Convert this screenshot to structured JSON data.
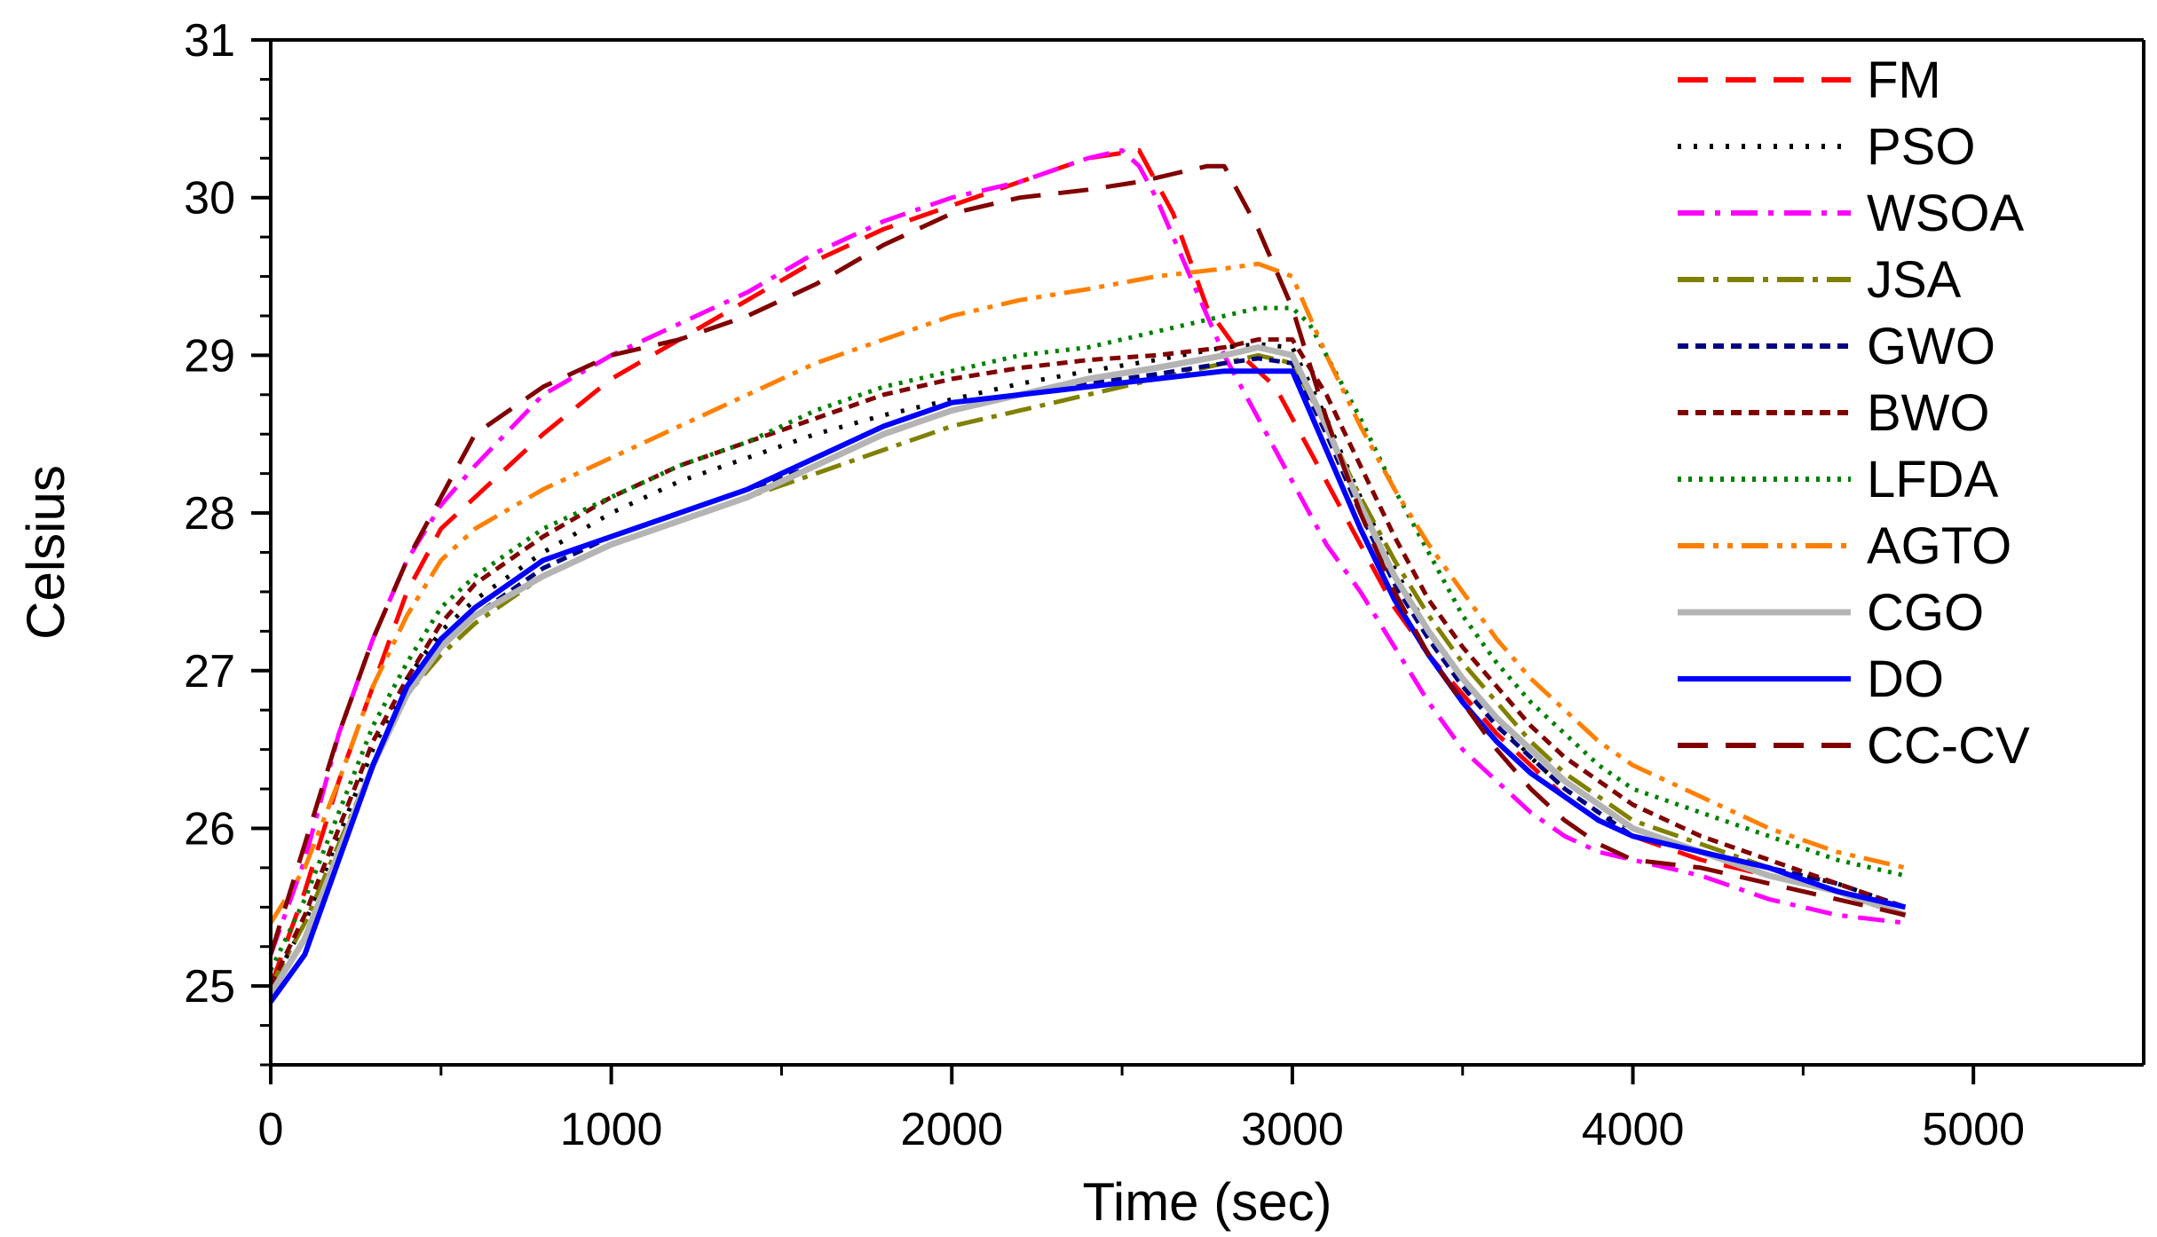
{
  "chart_data": {
    "type": "line",
    "title": "",
    "xlabel": "Time (sec)",
    "ylabel": "Celsius",
    "xlim": [
      0,
      5500
    ],
    "ylim": [
      24.5,
      31
    ],
    "xticks": [
      0,
      1000,
      2000,
      3000,
      4000,
      5000
    ],
    "yticks": [
      25,
      26,
      27,
      28,
      29,
      30,
      31
    ],
    "legend_position": "top-right",
    "series": [
      {
        "name": "FM",
        "color": "#ff0000",
        "dash": "34,20",
        "x": [
          0,
          100,
          200,
          300,
          400,
          500,
          600,
          800,
          1000,
          1200,
          1400,
          1600,
          1800,
          2000,
          2200,
          2400,
          2550,
          2650,
          2750,
          2850,
          2950,
          3000,
          3100,
          3200,
          3300,
          3400,
          3500,
          3600,
          3700,
          3800,
          3900,
          4000,
          4200,
          4400,
          4600,
          4700,
          4800
        ],
        "y": [
          25.0,
          25.6,
          26.3,
          26.9,
          27.5,
          27.9,
          28.1,
          28.5,
          28.85,
          29.1,
          29.35,
          29.6,
          29.8,
          29.95,
          30.1,
          30.25,
          30.3,
          29.9,
          29.3,
          29.0,
          28.8,
          28.6,
          28.2,
          27.8,
          27.4,
          27.1,
          26.85,
          26.6,
          26.4,
          26.2,
          26.05,
          25.95,
          25.8,
          25.7,
          25.6,
          25.55,
          25.5
        ]
      },
      {
        "name": "PSO",
        "color": "#000000",
        "dash": "4,14",
        "x": [
          0,
          100,
          200,
          300,
          400,
          500,
          600,
          800,
          1000,
          1200,
          1400,
          1600,
          1800,
          2000,
          2200,
          2400,
          2600,
          2800,
          2900,
          3000,
          3100,
          3200,
          3300,
          3400,
          3500,
          3600,
          3700,
          3800,
          3900,
          4000,
          4200,
          4400,
          4600,
          4800
        ],
        "y": [
          25.0,
          25.4,
          25.95,
          26.5,
          26.95,
          27.25,
          27.45,
          27.75,
          28.0,
          28.2,
          28.35,
          28.5,
          28.62,
          28.72,
          28.82,
          28.9,
          28.97,
          29.05,
          29.07,
          29.05,
          28.6,
          28.1,
          27.65,
          27.25,
          26.95,
          26.7,
          26.45,
          26.25,
          26.1,
          26.0,
          25.85,
          25.75,
          25.65,
          25.5
        ]
      },
      {
        "name": "WSOA",
        "color": "#ff00ff",
        "dash": "30,12,6,12",
        "x": [
          0,
          100,
          200,
          300,
          400,
          500,
          600,
          800,
          1000,
          1200,
          1400,
          1600,
          1800,
          2000,
          2200,
          2400,
          2500,
          2550,
          2600,
          2700,
          2800,
          2900,
          3000,
          3100,
          3200,
          3300,
          3400,
          3500,
          3600,
          3700,
          3800,
          3900,
          4000,
          4200,
          4400,
          4600,
          4800
        ],
        "y": [
          25.2,
          25.8,
          26.6,
          27.2,
          27.7,
          28.05,
          28.3,
          28.75,
          29.0,
          29.2,
          29.4,
          29.65,
          29.85,
          30.0,
          30.1,
          30.25,
          30.3,
          30.2,
          30.0,
          29.5,
          29.0,
          28.6,
          28.2,
          27.8,
          27.5,
          27.15,
          26.8,
          26.5,
          26.3,
          26.1,
          25.95,
          25.85,
          25.8,
          25.7,
          25.55,
          25.45,
          25.4
        ]
      },
      {
        "name": "JSA",
        "color": "#808000",
        "dash": "30,10,6,10",
        "x": [
          0,
          100,
          200,
          300,
          400,
          500,
          600,
          800,
          1000,
          1200,
          1400,
          1600,
          1800,
          2000,
          2200,
          2400,
          2600,
          2800,
          2900,
          3000,
          3100,
          3200,
          3300,
          3400,
          3500,
          3600,
          3700,
          3800,
          3900,
          4000,
          4200,
          4400,
          4600,
          4800
        ],
        "y": [
          25.0,
          25.4,
          25.9,
          26.4,
          26.85,
          27.1,
          27.3,
          27.6,
          27.8,
          27.95,
          28.1,
          28.25,
          28.4,
          28.55,
          28.65,
          28.75,
          28.85,
          28.95,
          29.0,
          28.95,
          28.55,
          28.1,
          27.7,
          27.35,
          27.05,
          26.8,
          26.55,
          26.35,
          26.2,
          26.05,
          25.9,
          25.75,
          25.6,
          25.45
        ]
      },
      {
        "name": "GWO",
        "color": "#000080",
        "dash": "12,8",
        "x": [
          0,
          100,
          200,
          300,
          400,
          500,
          600,
          800,
          1000,
          1200,
          1400,
          1600,
          1800,
          2000,
          2200,
          2400,
          2600,
          2800,
          2900,
          3000,
          3100,
          3200,
          3300,
          3400,
          3500,
          3600,
          3700,
          3800,
          3900,
          4000,
          4200,
          4400,
          4600,
          4800
        ],
        "y": [
          24.95,
          25.3,
          25.85,
          26.4,
          26.85,
          27.15,
          27.35,
          27.65,
          27.85,
          28.0,
          28.15,
          28.3,
          28.5,
          28.65,
          28.75,
          28.82,
          28.88,
          28.95,
          28.98,
          28.95,
          28.5,
          28.0,
          27.55,
          27.2,
          26.9,
          26.65,
          26.45,
          26.25,
          26.1,
          25.95,
          25.85,
          25.75,
          25.65,
          25.5
        ]
      },
      {
        "name": "BWO",
        "color": "#800000",
        "dash": "12,8",
        "x": [
          0,
          100,
          200,
          300,
          400,
          500,
          600,
          800,
          1000,
          1200,
          1400,
          1600,
          1800,
          2000,
          2200,
          2400,
          2600,
          2800,
          2900,
          3000,
          3100,
          3200,
          3300,
          3400,
          3500,
          3600,
          3700,
          3800,
          3900,
          4000,
          4200,
          4400,
          4600,
          4800
        ],
        "y": [
          25.0,
          25.45,
          26.0,
          26.55,
          26.95,
          27.3,
          27.55,
          27.85,
          28.1,
          28.3,
          28.45,
          28.6,
          28.75,
          28.85,
          28.92,
          28.97,
          29.0,
          29.05,
          29.1,
          29.1,
          28.75,
          28.3,
          27.85,
          27.45,
          27.15,
          26.9,
          26.65,
          26.45,
          26.3,
          26.15,
          25.95,
          25.8,
          25.65,
          25.5
        ]
      },
      {
        "name": "LFDA",
        "color": "#008000",
        "dash": "4,8",
        "x": [
          0,
          100,
          200,
          300,
          400,
          500,
          600,
          800,
          1000,
          1200,
          1400,
          1600,
          1800,
          2000,
          2200,
          2400,
          2600,
          2800,
          2900,
          3000,
          3050,
          3100,
          3200,
          3300,
          3400,
          3500,
          3600,
          3700,
          3800,
          3900,
          4000,
          4200,
          4400,
          4600,
          4800
        ],
        "y": [
          25.1,
          25.55,
          26.1,
          26.65,
          27.05,
          27.4,
          27.6,
          27.9,
          28.1,
          28.3,
          28.45,
          28.65,
          28.8,
          28.9,
          29.0,
          29.05,
          29.15,
          29.25,
          29.3,
          29.3,
          29.2,
          29.0,
          28.6,
          28.15,
          27.75,
          27.35,
          27.05,
          26.8,
          26.6,
          26.4,
          26.25,
          26.1,
          25.95,
          25.8,
          25.7
        ]
      },
      {
        "name": "AGTO",
        "color": "#ff8000",
        "dash": "30,10,6,10,6,10",
        "x": [
          0,
          100,
          200,
          300,
          400,
          500,
          600,
          800,
          1000,
          1200,
          1400,
          1600,
          1800,
          2000,
          2200,
          2400,
          2600,
          2800,
          2900,
          3000,
          3100,
          3200,
          3300,
          3400,
          3500,
          3600,
          3700,
          3800,
          3900,
          4000,
          4200,
          4400,
          4600,
          4800
        ],
        "y": [
          25.4,
          25.75,
          26.3,
          26.9,
          27.35,
          27.7,
          27.9,
          28.15,
          28.35,
          28.55,
          28.75,
          28.95,
          29.1,
          29.25,
          29.35,
          29.42,
          29.5,
          29.55,
          29.58,
          29.5,
          29.0,
          28.55,
          28.15,
          27.8,
          27.5,
          27.2,
          26.95,
          26.75,
          26.55,
          26.4,
          26.2,
          26.0,
          25.85,
          25.75
        ]
      },
      {
        "name": "CGO",
        "color": "#b4b4b4",
        "dash": "",
        "x": [
          0,
          100,
          200,
          300,
          400,
          500,
          600,
          800,
          1000,
          1200,
          1400,
          1600,
          1800,
          2000,
          2200,
          2400,
          2600,
          2800,
          2900,
          3000,
          3100,
          3200,
          3300,
          3400,
          3500,
          3600,
          3700,
          3800,
          3900,
          4000,
          4200,
          4400,
          4600,
          4800
        ],
        "y": [
          24.95,
          25.3,
          25.85,
          26.4,
          26.85,
          27.15,
          27.35,
          27.6,
          27.8,
          27.95,
          28.1,
          28.3,
          28.5,
          28.65,
          28.75,
          28.85,
          28.92,
          29.0,
          29.05,
          29.0,
          28.55,
          28.05,
          27.6,
          27.25,
          26.95,
          26.7,
          26.5,
          26.3,
          26.15,
          26.0,
          25.85,
          25.7,
          25.6,
          25.45
        ]
      },
      {
        "name": "DO",
        "color": "#0000ff",
        "dash": "",
        "x": [
          0,
          100,
          200,
          300,
          400,
          500,
          600,
          800,
          1000,
          1200,
          1400,
          1600,
          1800,
          2000,
          2200,
          2400,
          2600,
          2800,
          2900,
          3000,
          3100,
          3200,
          3300,
          3400,
          3500,
          3600,
          3700,
          3800,
          3900,
          4000,
          4200,
          4400,
          4600,
          4800
        ],
        "y": [
          24.9,
          25.2,
          25.8,
          26.4,
          26.9,
          27.2,
          27.4,
          27.7,
          27.85,
          28.0,
          28.15,
          28.35,
          28.55,
          28.7,
          28.75,
          28.8,
          28.85,
          28.9,
          28.9,
          28.9,
          28.4,
          27.9,
          27.45,
          27.1,
          26.8,
          26.55,
          26.35,
          26.2,
          26.05,
          25.95,
          25.85,
          25.75,
          25.6,
          25.5
        ]
      },
      {
        "name": "CC-CV",
        "color": "#800000",
        "dash": "34,20",
        "x": [
          0,
          100,
          200,
          300,
          400,
          500,
          600,
          800,
          1000,
          1200,
          1400,
          1600,
          1800,
          2000,
          2200,
          2400,
          2550,
          2650,
          2750,
          2800,
          2850,
          2900,
          3000,
          3100,
          3200,
          3300,
          3400,
          3500,
          3600,
          3700,
          3800,
          3900,
          4000,
          4200,
          4400,
          4600,
          4800
        ],
        "y": [
          25.2,
          25.9,
          26.6,
          27.2,
          27.7,
          28.1,
          28.5,
          28.8,
          29.0,
          29.1,
          29.25,
          29.45,
          29.7,
          29.9,
          30.0,
          30.05,
          30.1,
          30.15,
          30.2,
          30.2,
          30.0,
          29.8,
          29.3,
          28.6,
          28.0,
          27.5,
          27.1,
          26.8,
          26.5,
          26.25,
          26.05,
          25.9,
          25.8,
          25.75,
          25.65,
          25.55,
          25.45
        ]
      }
    ]
  }
}
